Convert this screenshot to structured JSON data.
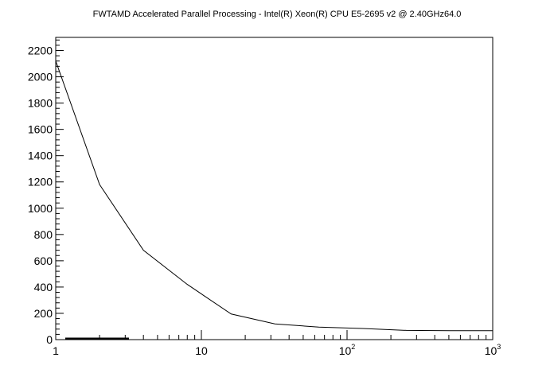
{
  "chart_data": {
    "type": "line",
    "title": "FWTAMD Accelerated Parallel Processing - Intel(R) Xeon(R) CPU E5-2695 v2 @ 2.40GHz64.0",
    "xlabel": "",
    "ylabel": "",
    "x_scale": "log",
    "xlim": [
      1,
      1000
    ],
    "ylim": [
      0,
      2300
    ],
    "x_ticks": [
      {
        "value": 1,
        "base": "1",
        "exp": ""
      },
      {
        "value": 10,
        "base": "10",
        "exp": ""
      },
      {
        "value": 100,
        "base": "10",
        "exp": "2"
      },
      {
        "value": 1000,
        "base": "10",
        "exp": "3"
      }
    ],
    "y_ticks": [
      0,
      200,
      400,
      600,
      800,
      1000,
      1200,
      1400,
      1600,
      1800,
      2000,
      2200
    ],
    "grid": false,
    "legend": "none",
    "series": [
      {
        "x": [
          1,
          2,
          4,
          8,
          16,
          32,
          64,
          128,
          256,
          512,
          1024
        ],
        "y": [
          2120,
          1180,
          680,
          420,
          195,
          120,
          95,
          85,
          70,
          68,
          68
        ],
        "color": "#000000"
      }
    ]
  }
}
